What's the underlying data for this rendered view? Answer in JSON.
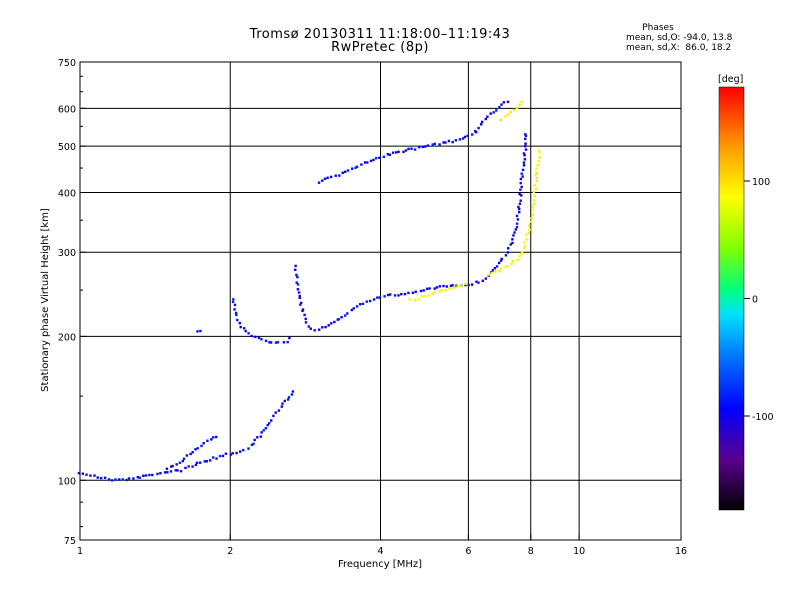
{
  "titles": {
    "line1": "Tromsø 20130311 11:18:00–11:19:43",
    "line2": "RwPretec (8p)"
  },
  "stats": {
    "heading": "Phases",
    "o_label": "mean, sd,O: -94.0, 13.8",
    "x_label": "mean, sd,X:  86.0, 18.2"
  },
  "colorbar": {
    "label": "[deg]",
    "ticks": [
      "100",
      "0",
      "-100"
    ],
    "range": [
      -180,
      180
    ]
  },
  "chart_data": {
    "type": "scatter",
    "xlabel": "Frequency [MHz]",
    "ylabel": "Stationary phase Virtual Height [km]",
    "xscale": "log",
    "yscale": "log",
    "xlim": [
      1,
      16
    ],
    "ylim": [
      75,
      750
    ],
    "xticks": [
      "1",
      "2",
      "4",
      "6",
      "8",
      "10",
      "16"
    ],
    "yticks": [
      "750",
      "600",
      "500",
      "400",
      "300",
      "200",
      "100",
      "75"
    ],
    "grid": true,
    "series": [
      {
        "mode": "O",
        "phase_deg": -94,
        "traces": [
          [
            [
              1.0,
              104
            ],
            [
              1.1,
              101
            ],
            [
              1.2,
              100
            ],
            [
              1.3,
              101
            ],
            [
              1.4,
              103
            ],
            [
              1.5,
              104
            ],
            [
              1.6,
              105
            ],
            [
              1.7,
              108
            ],
            [
              1.8,
              110
            ],
            [
              1.9,
              112
            ],
            [
              2.0,
              114
            ]
          ],
          [
            [
              1.5,
              106
            ],
            [
              1.6,
              110
            ],
            [
              1.7,
              116
            ],
            [
              1.8,
              121
            ],
            [
              1.9,
              124
            ]
          ],
          [
            [
              2.0,
              113
            ],
            [
              2.1,
              115
            ],
            [
              2.2,
              118
            ],
            [
              2.3,
              124
            ],
            [
              2.4,
              132
            ],
            [
              2.5,
              140
            ],
            [
              2.6,
              148
            ],
            [
              2.7,
              155
            ]
          ],
          [
            [
              1.72,
              205
            ],
            [
              1.76,
              206
            ]
          ],
          [
            [
              2.02,
              240
            ],
            [
              2.05,
              225
            ],
            [
              2.1,
              210
            ],
            [
              2.2,
              200
            ],
            [
              2.35,
              195
            ],
            [
              2.5,
              194
            ],
            [
              2.6,
              195
            ],
            [
              2.65,
              200
            ]
          ],
          [
            [
              2.7,
              280
            ],
            [
              2.72,
              260
            ],
            [
              2.75,
              240
            ],
            [
              2.8,
              225
            ],
            [
              2.85,
              213
            ],
            [
              2.9,
              208
            ],
            [
              3.0,
              206
            ]
          ],
          [
            [
              3.0,
              207
            ],
            [
              3.2,
              212
            ],
            [
              3.4,
              222
            ],
            [
              3.6,
              232
            ],
            [
              3.8,
              238
            ],
            [
              4.0,
              242
            ],
            [
              4.4,
              245
            ],
            [
              4.8,
              249
            ],
            [
              5.2,
              253
            ],
            [
              5.6,
              255
            ],
            [
              6.0,
              257
            ],
            [
              6.3,
              260
            ],
            [
              6.5,
              263
            ]
          ],
          [
            [
              6.5,
              265
            ],
            [
              6.7,
              275
            ],
            [
              6.9,
              285
            ],
            [
              7.1,
              295
            ],
            [
              7.3,
              310
            ],
            [
              7.5,
              340
            ],
            [
              7.6,
              380
            ],
            [
              7.7,
              440
            ],
            [
              7.8,
              500
            ],
            [
              7.85,
              540
            ]
          ],
          [
            [
              3.0,
              420
            ],
            [
              3.3,
              435
            ],
            [
              3.6,
              455
            ],
            [
              4.0,
              475
            ],
            [
              4.5,
              490
            ],
            [
              5.0,
              500
            ],
            [
              5.5,
              510
            ],
            [
              6.0,
              525
            ],
            [
              6.3,
              540
            ]
          ],
          [
            [
              6.2,
              540
            ],
            [
              6.5,
              570
            ],
            [
              6.8,
              595
            ],
            [
              7.0,
              610
            ],
            [
              7.3,
              625
            ]
          ]
        ]
      },
      {
        "mode": "X",
        "phase_deg": 86,
        "traces": [
          [
            [
              4.6,
              238
            ],
            [
              5.0,
              244
            ],
            [
              5.4,
              250
            ],
            [
              5.8,
              256
            ],
            [
              6.0,
              258
            ]
          ],
          [
            [
              6.6,
              270
            ],
            [
              6.9,
              275
            ],
            [
              7.2,
              280
            ],
            [
              7.5,
              290
            ],
            [
              7.7,
              300
            ],
            [
              7.9,
              330
            ],
            [
              8.05,
              360
            ],
            [
              8.15,
              400
            ],
            [
              8.25,
              450
            ],
            [
              8.35,
              500
            ]
          ],
          [
            [
              7.0,
              570
            ],
            [
              7.3,
              590
            ],
            [
              7.6,
              610
            ],
            [
              7.8,
              630
            ]
          ]
        ]
      }
    ]
  }
}
